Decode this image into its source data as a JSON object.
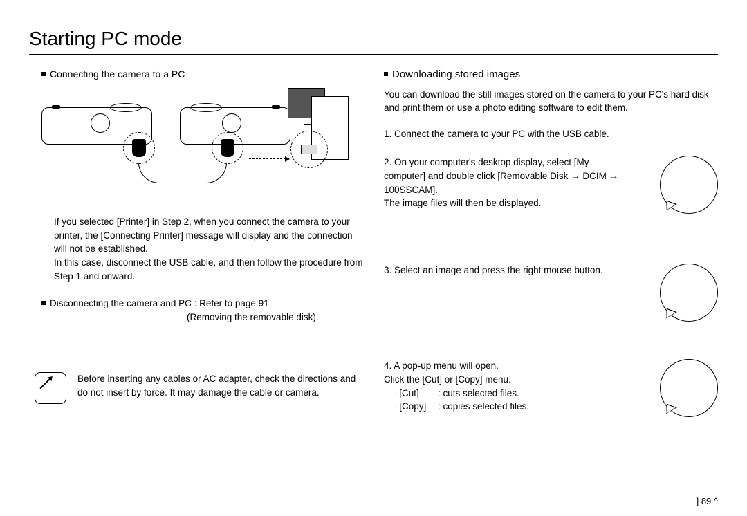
{
  "title": "Starting PC mode",
  "left": {
    "connect_heading": "Connecting the camera to a PC",
    "printer_note": "If you selected [Printer] in Step 2, when you connect the camera to your printer, the [Connecting Printer] message will display and the connection will not be established.\nIn this case, disconnect the USB cable, and then follow the procedure from Step 1 and onward.",
    "disconnect_line1": "Disconnecting the camera and PC : Refer to page 91",
    "disconnect_line2": "(Removing the removable disk).",
    "warning_text": "Before inserting any cables or AC adapter, check the directions and do not insert by force. It may damage the cable or camera."
  },
  "right": {
    "download_heading": "Downloading stored images",
    "intro": "You can download the still images stored on the camera to your PC's hard disk and print them or use a photo editing software to edit them.",
    "step1": "1. Connect the camera to your PC with the USB cable.",
    "step2": "2. On your computer's desktop display, select [My computer] and double click [Removable Disk → DCIM → 100SSCAM].\nThe image files will then be displayed.",
    "step3": "3. Select an image and press the right mouse button.",
    "step4_intro": "4. A pop-up menu will open.\nClick the [Cut] or [Copy] menu.",
    "cut_label": "- [Cut]",
    "cut_desc": ": cuts selected files.",
    "copy_label": "- [Copy]",
    "copy_desc": ": copies selected files."
  },
  "page_number": "] 89 ^"
}
